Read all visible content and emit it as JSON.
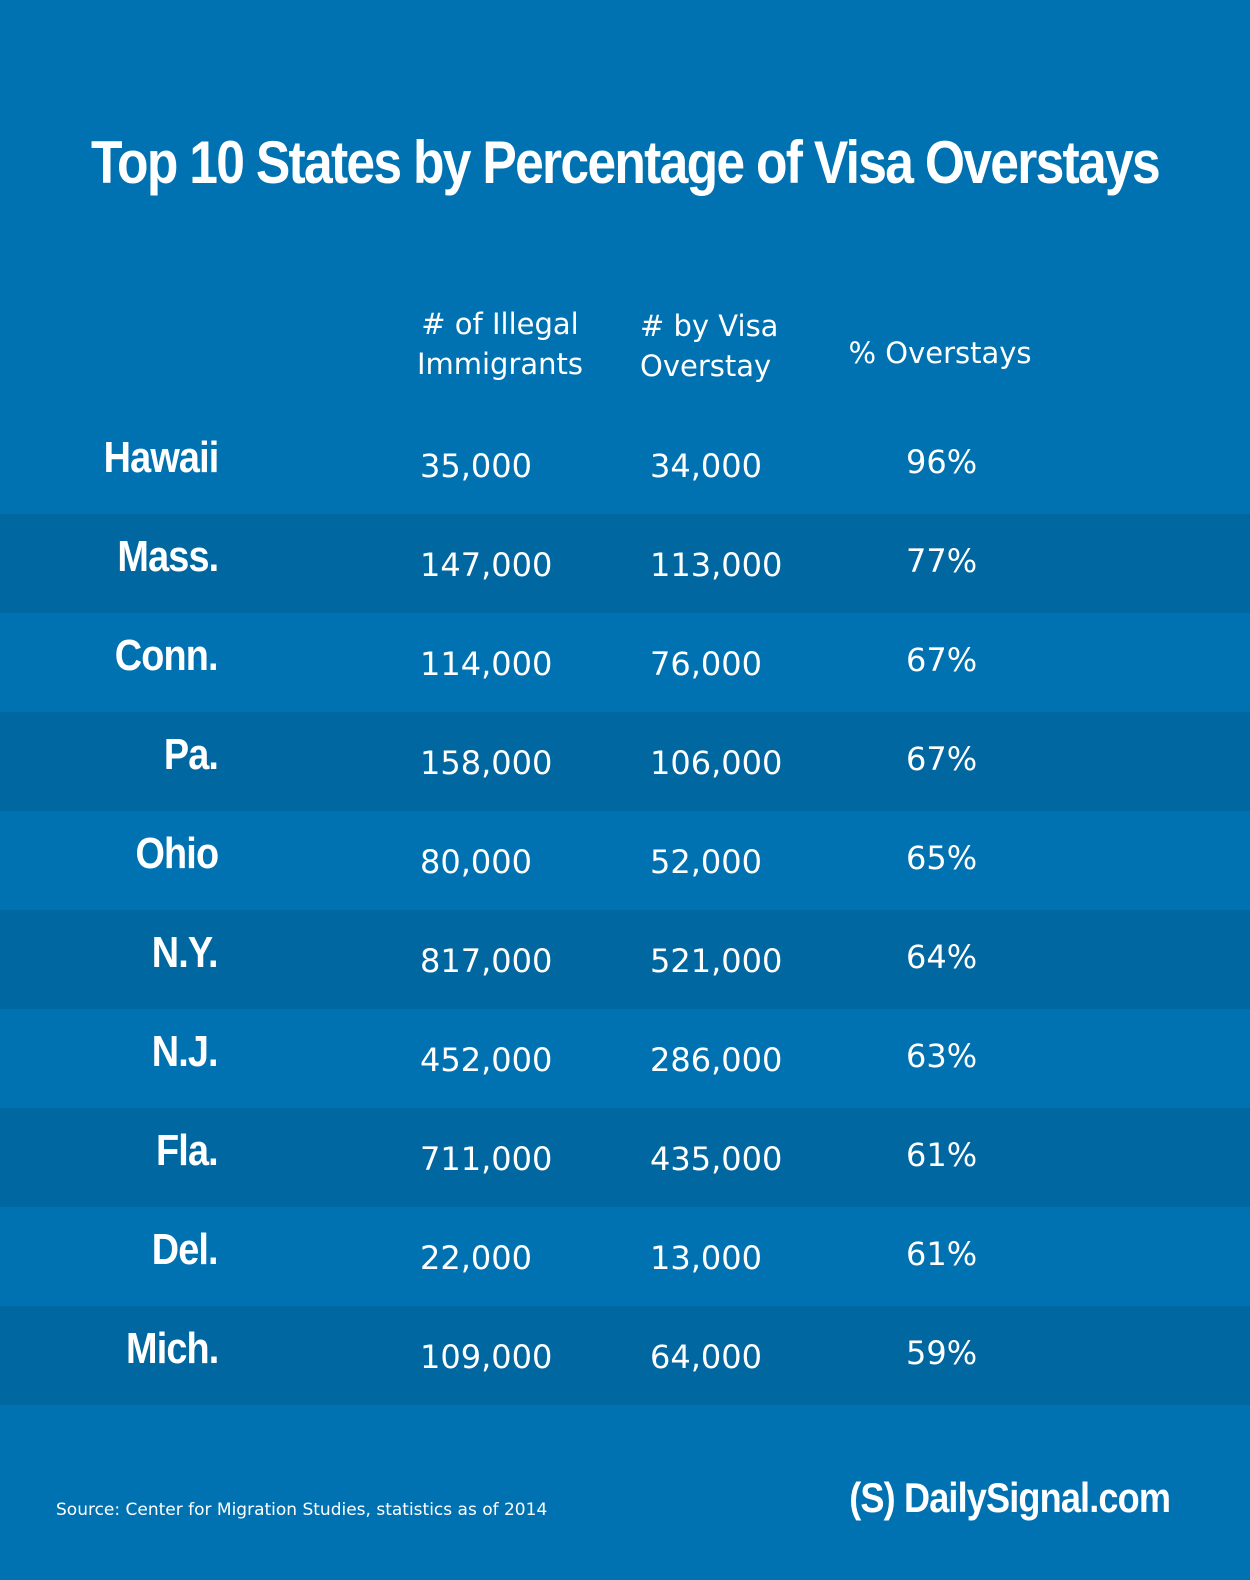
{
  "chart_data": {
    "type": "table",
    "title": "Top 10 States by Percentage of Visa Overstays",
    "columns": [
      "# of Illegal\nImmigrants",
      "# by Visa\nOverstay",
      "% Overstays"
    ],
    "rows": [
      {
        "state": "Hawaii",
        "illegal": "35,000",
        "overstay": "34,000",
        "pct": "96%"
      },
      {
        "state": "Mass.",
        "illegal": "147,000",
        "overstay": "113,000",
        "pct": "77%"
      },
      {
        "state": "Conn.",
        "illegal": "114,000",
        "overstay": "76,000",
        "pct": "67%"
      },
      {
        "state": "Pa.",
        "illegal": "158,000",
        "overstay": "106,000",
        "pct": "67%"
      },
      {
        "state": "Ohio",
        "illegal": "80,000",
        "overstay": "52,000",
        "pct": "65%"
      },
      {
        "state": "N.Y.",
        "illegal": "817,000",
        "overstay": "521,000",
        "pct": "64%"
      },
      {
        "state": "N.J.",
        "illegal": "452,000",
        "overstay": "286,000",
        "pct": "63%"
      },
      {
        "state": "Fla.",
        "illegal": "711,000",
        "overstay": "435,000",
        "pct": "61%"
      },
      {
        "state": "Del.",
        "illegal": "22,000",
        "overstay": "13,000",
        "pct": "61%"
      },
      {
        "state": "Mich.",
        "illegal": "109,000",
        "overstay": "64,000",
        "pct": "59%"
      }
    ],
    "source": "Source: Center for Migration Studies, statistics as of 2014"
  },
  "brand": "(S) DailySignal.com",
  "colors": {
    "background": "#0172b1",
    "band": "#0067a1",
    "text": "#ffffff"
  }
}
